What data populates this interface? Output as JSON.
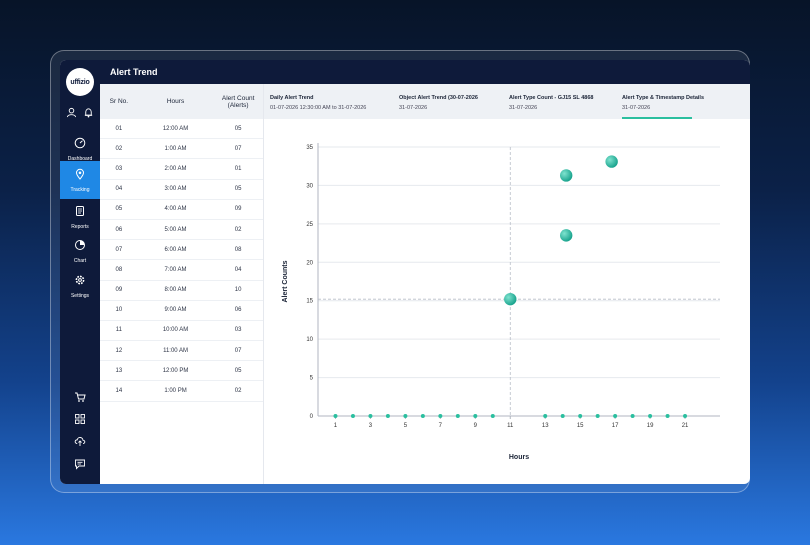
{
  "app": {
    "logo_text": "uffizio",
    "page_title": "Alert Trend"
  },
  "sidebar": {
    "top_icons": [
      "user-icon",
      "bell-icon"
    ],
    "items": [
      {
        "label": "Dashboard",
        "icon": "speedometer-icon",
        "active": false
      },
      {
        "label": "Tracking",
        "icon": "location-pin-icon",
        "active": true
      },
      {
        "label": "Reports",
        "icon": "document-icon",
        "active": false
      },
      {
        "label": "Chart",
        "icon": "pie-chart-icon",
        "active": false
      },
      {
        "label": "Settings",
        "icon": "gear-icon",
        "active": false
      }
    ],
    "bottom_icons": [
      "cart-icon",
      "grid-icon",
      "cloud-upload-icon",
      "chat-icon"
    ]
  },
  "table": {
    "headers": [
      "Sr No.",
      "Hours",
      "Alert Count (Alerts)"
    ],
    "rows": [
      [
        "01",
        "12:00 AM",
        "05"
      ],
      [
        "02",
        "1:00 AM",
        "07"
      ],
      [
        "03",
        "2:00 AM",
        "01"
      ],
      [
        "04",
        "3:00 AM",
        "05"
      ],
      [
        "05",
        "4:00 AM",
        "09"
      ],
      [
        "06",
        "5:00 AM",
        "02"
      ],
      [
        "07",
        "6:00 AM",
        "08"
      ],
      [
        "08",
        "7:00 AM",
        "04"
      ],
      [
        "09",
        "8:00 AM",
        "10"
      ],
      [
        "10",
        "9:00 AM",
        "06"
      ],
      [
        "11",
        "10:00 AM",
        "03"
      ],
      [
        "12",
        "11:00 AM",
        "07"
      ],
      [
        "13",
        "12:00 PM",
        "05"
      ],
      [
        "14",
        "1:00 PM",
        "02"
      ]
    ]
  },
  "tabs": [
    {
      "title": "Daily Alert Trend",
      "subtitle": "01-07-2026 12:30:00 AM to 31-07-2026"
    },
    {
      "title": "Object Alert Trend (30-07-2026",
      "subtitle": "31-07-2026"
    },
    {
      "title": "Alert Type Count - GJ15 SL 4868",
      "subtitle": "31-07-2026"
    },
    {
      "title": "Alert Type & Timestamp Details",
      "subtitle": "31-07-2026",
      "active": true
    }
  ],
  "colors": {
    "sidebar": "#0e1a3a",
    "accent": "#1f88e5",
    "point": "#2bbf9f",
    "tab_underline": "#2bbf9f"
  },
  "chart_data": {
    "type": "scatter",
    "xlabel": "Hours",
    "ylabel": "Alert Counts",
    "xlim": [
      0,
      23
    ],
    "ylim": [
      0,
      35
    ],
    "xticks": [
      1,
      3,
      5,
      7,
      9,
      11,
      13,
      15,
      17,
      19,
      21
    ],
    "yticks": [
      0,
      5,
      10,
      15,
      20,
      25,
      30,
      35
    ],
    "grid": true,
    "crosshair": {
      "x": 11,
      "y": 15.2
    },
    "points": [
      {
        "x": 11,
        "y": 15.2,
        "highlight": true
      },
      {
        "x": 14.2,
        "y": 31.3,
        "highlight": true
      },
      {
        "x": 14.2,
        "y": 23.5,
        "highlight": true
      },
      {
        "x": 16.8,
        "y": 33.1,
        "highlight": true
      },
      {
        "x": 1,
        "y": 0
      },
      {
        "x": 2,
        "y": 0
      },
      {
        "x": 3,
        "y": 0
      },
      {
        "x": 4,
        "y": 0
      },
      {
        "x": 5,
        "y": 0
      },
      {
        "x": 6,
        "y": 0
      },
      {
        "x": 7,
        "y": 0
      },
      {
        "x": 8,
        "y": 0
      },
      {
        "x": 9,
        "y": 0
      },
      {
        "x": 10,
        "y": 0
      },
      {
        "x": 13,
        "y": 0
      },
      {
        "x": 14,
        "y": 0
      },
      {
        "x": 15,
        "y": 0
      },
      {
        "x": 16,
        "y": 0
      },
      {
        "x": 17,
        "y": 0
      },
      {
        "x": 18,
        "y": 0
      },
      {
        "x": 19,
        "y": 0
      },
      {
        "x": 20,
        "y": 0
      },
      {
        "x": 21,
        "y": 0
      }
    ]
  }
}
